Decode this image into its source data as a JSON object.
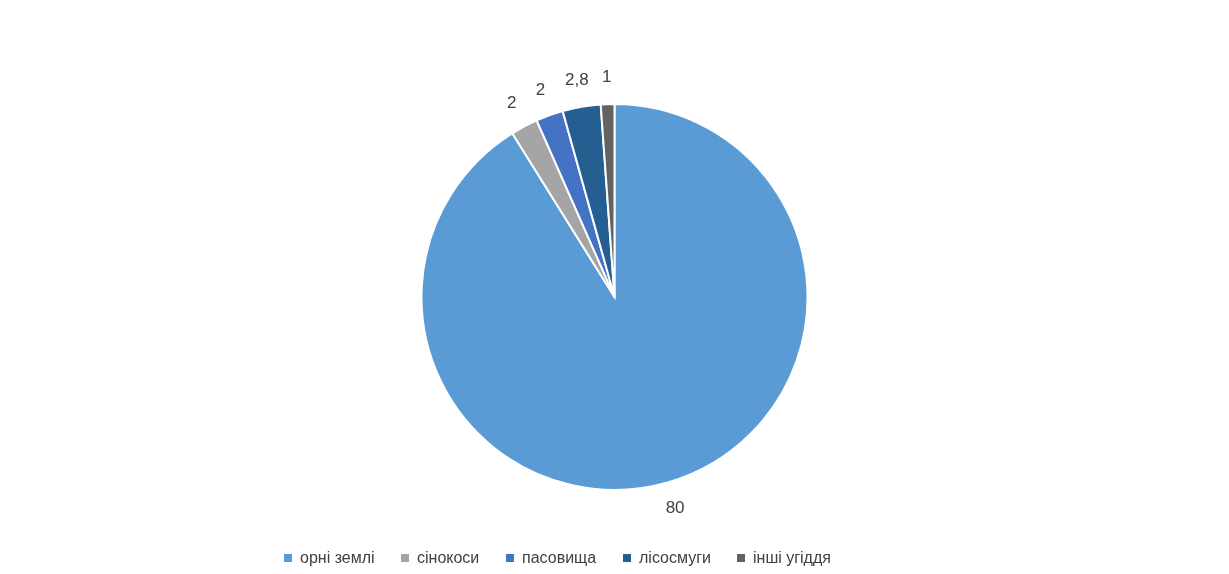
{
  "chart_data": {
    "type": "pie",
    "categories": [
      "орні землі",
      "сінокоси",
      "пасовища",
      "лісосмуги",
      "інші угіддя"
    ],
    "values": [
      80,
      2,
      2,
      2.8,
      1
    ],
    "colors": [
      "#5b9bd5",
      "#a5a5a5",
      "#4472c4",
      "#255e91",
      "#636363"
    ],
    "value_labels": [
      "80",
      "2",
      "2",
      "2,8",
      "1"
    ],
    "legend": "bottom"
  }
}
